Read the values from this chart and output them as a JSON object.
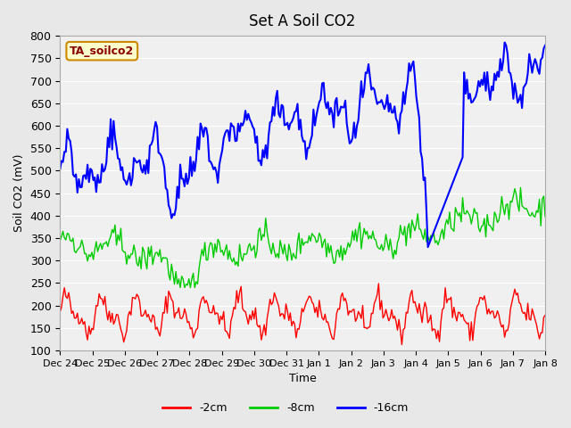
{
  "title": "Set A Soil CO2",
  "xlabel": "Time",
  "ylabel": "Soil CO2 (mV)",
  "ylim": [
    100,
    800
  ],
  "legend_label": "TA_soilco2",
  "legend_box_color": "#ffffcc",
  "legend_box_edge": "#cc8800",
  "line_labels": [
    "-2cm",
    "-8cm",
    "-16cm"
  ],
  "line_colors": [
    "#ff0000",
    "#00cc00",
    "#0000ff"
  ],
  "x_tick_labels": [
    "Dec 24",
    "Dec 25",
    "Dec 26",
    "Dec 27",
    "Dec 28",
    "Dec 29",
    "Dec 30",
    "Dec 31",
    "Jan 1",
    "Jan 2",
    "Jan 3",
    "Jan 4",
    "Jan 5",
    "Jan 6",
    "Jan 7",
    "Jan 8"
  ],
  "bg_color": "#e8e8e8",
  "plot_bg_color": "#f0f0f0",
  "n_points": 336,
  "seed": 42
}
